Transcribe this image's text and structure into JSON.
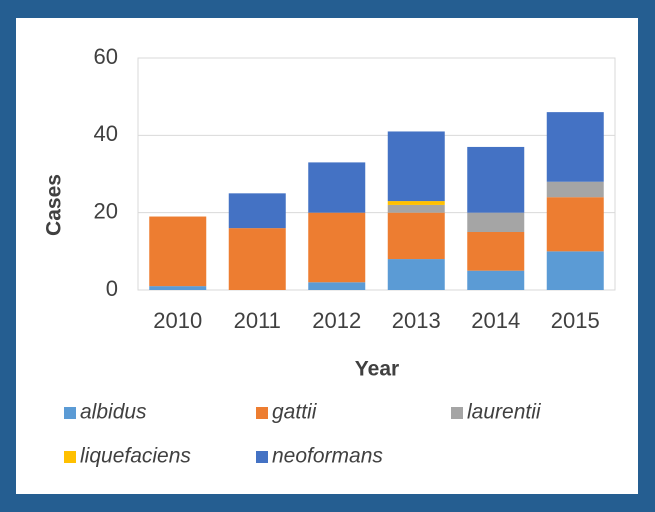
{
  "chart_data": {
    "type": "stacked_bar",
    "x_label": "Year",
    "y_label": "Cases",
    "categories": [
      "2010",
      "2011",
      "2012",
      "2013",
      "2014",
      "2015"
    ],
    "series": [
      {
        "name": "albidus",
        "color": "#5b9bd5",
        "values": [
          1,
          0,
          2,
          8,
          5,
          10
        ]
      },
      {
        "name": "gattii",
        "color": "#ed7d31",
        "values": [
          18,
          16,
          18,
          12,
          10,
          14
        ]
      },
      {
        "name": "laurentii",
        "color": "#a5a5a5",
        "values": [
          0,
          0,
          0,
          2,
          5,
          4
        ]
      },
      {
        "name": "liquefaciens",
        "color": "#ffc000",
        "values": [
          0,
          0,
          0,
          1,
          0,
          0
        ]
      },
      {
        "name": "neoformans",
        "color": "#4472c4",
        "values": [
          0,
          9,
          13,
          18,
          17,
          18
        ]
      }
    ],
    "ylim": [
      0,
      60
    ],
    "yticks": [
      0,
      20,
      40,
      60
    ],
    "grid": true,
    "legend": "bottom"
  }
}
